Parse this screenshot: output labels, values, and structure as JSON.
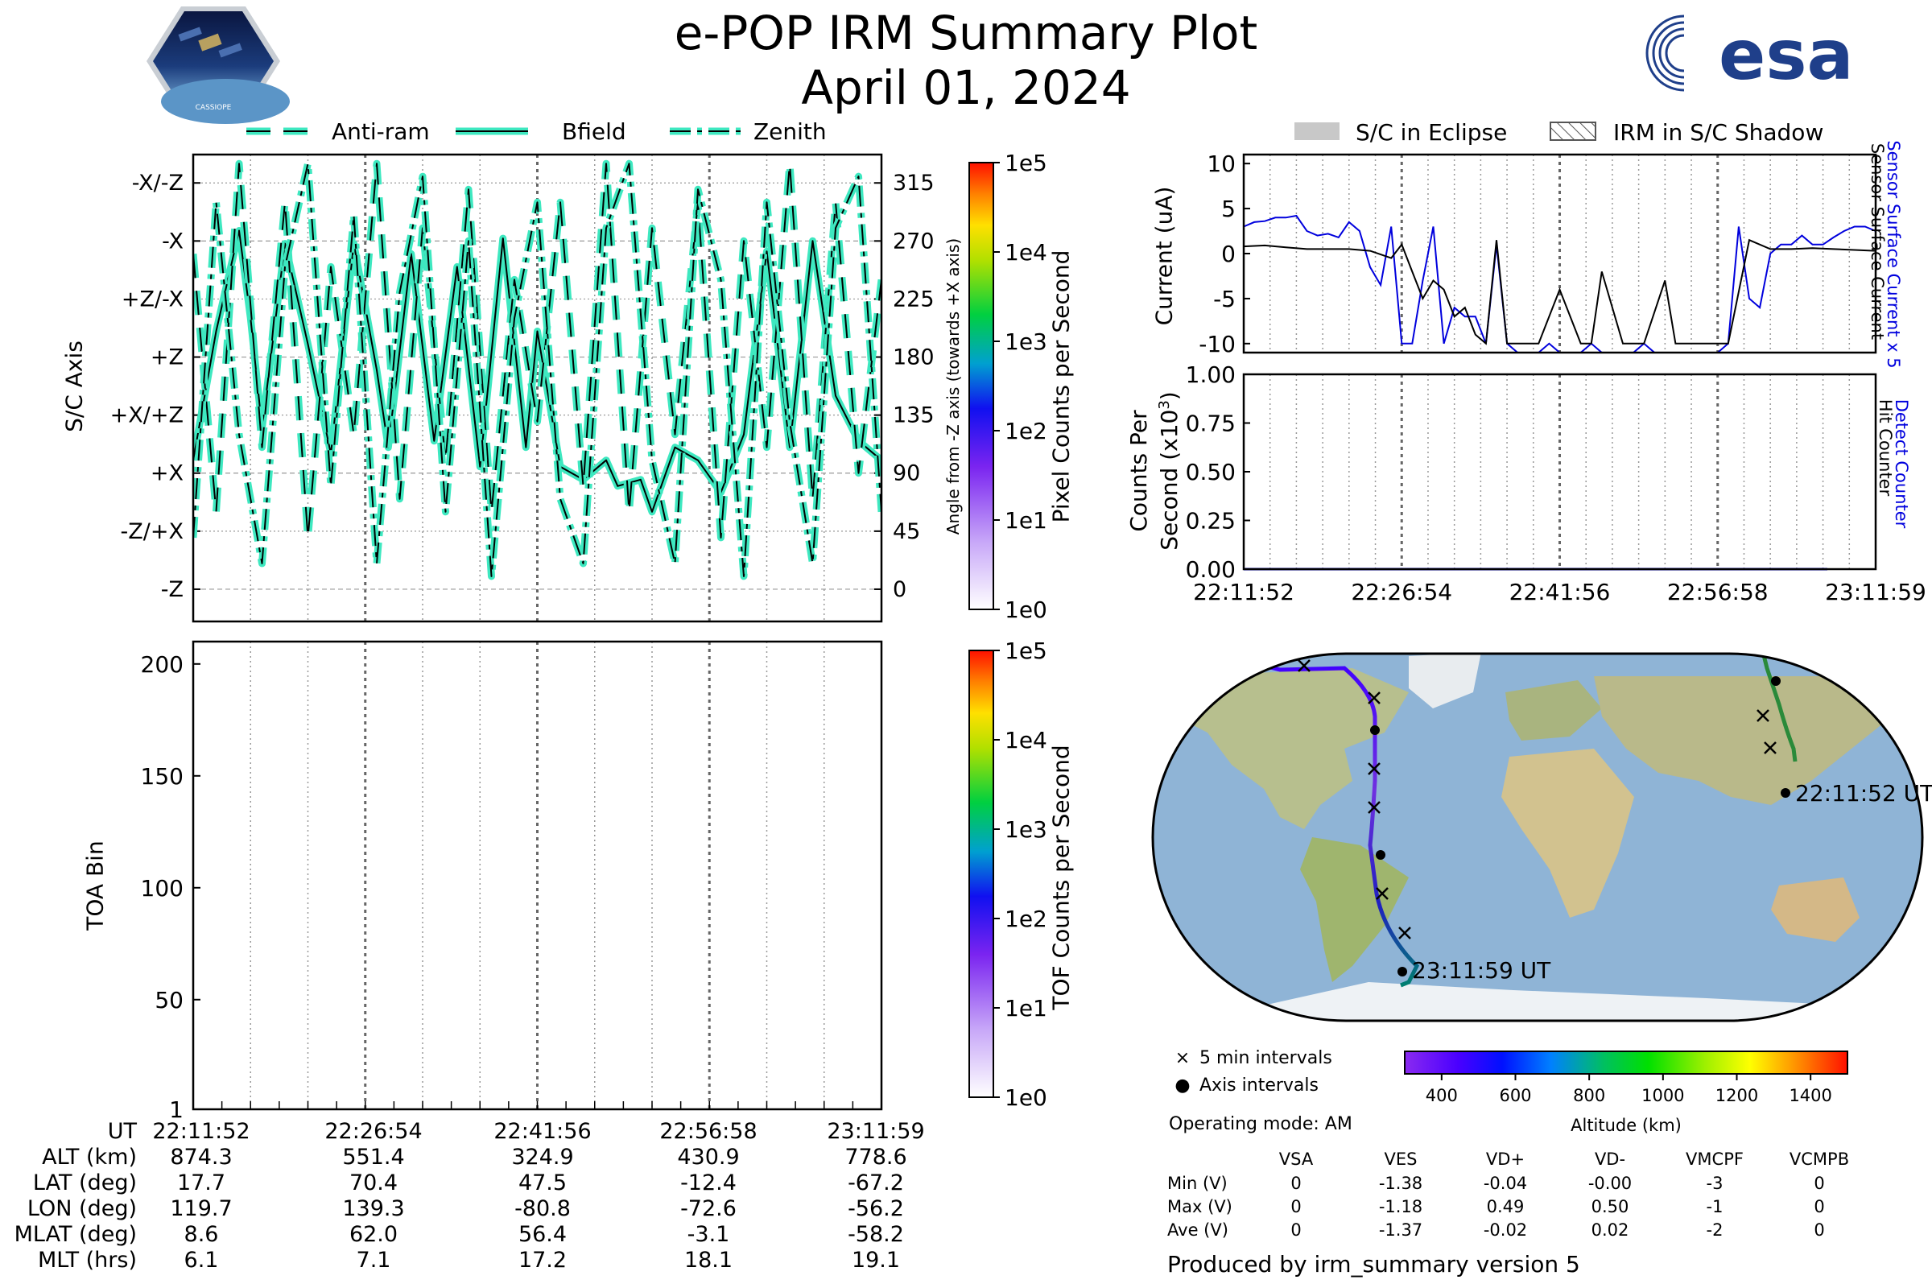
{
  "title": "e-POP IRM Summary Plot",
  "date": "April 01, 2024",
  "esa_logo_text": "esa",
  "cassiope_logo_text": "CASSIOPE",
  "axis_legend": [
    "Anti-ram",
    "Bfield",
    "Zenith"
  ],
  "eclipse_legend": [
    "S/C in Eclipse",
    "IRM in S/C Shadow"
  ],
  "colors": {
    "trace_fill": "#3ee8c0",
    "trace_edge": "#000000",
    "sensor_current": "#0000dd",
    "surface_current": "#000000",
    "grid": "#888888"
  },
  "chart_data": [
    {
      "id": "sc_axis",
      "type": "line",
      "ylabel": "S/C Axis",
      "y2label": "Angle from -Z axis (towards +X axis)",
      "ytick_labels": [
        "-X/-Z",
        "-X",
        "+Z/-X",
        "+Z",
        "+X/+Z",
        "+X",
        "-Z/+X",
        "-Z"
      ],
      "y2ticks": [
        315,
        270,
        225,
        180,
        135,
        90,
        45,
        0
      ],
      "ylim": [
        -25,
        337
      ],
      "x_range": [
        "22:11:52",
        "23:11:59"
      ],
      "series": [
        {
          "name": "Bfield",
          "style": "solid",
          "x_min": [
            0,
            2,
            4,
            5,
            6,
            8,
            10,
            12,
            14,
            16,
            17,
            19,
            21,
            23,
            25,
            27,
            29,
            30,
            32,
            34,
            36,
            37,
            39,
            40,
            42,
            44,
            46,
            48,
            50,
            52,
            54,
            56,
            58,
            60
          ],
          "angle_deg": [
            100,
            200,
            278,
            210,
            125,
            268,
            190,
            105,
            268,
            170,
            110,
            260,
            115,
            250,
            95,
            272,
            110,
            200,
            95,
            85,
            100,
            80,
            85,
            60,
            110,
            100,
            75,
            120,
            262,
            110,
            270,
            150,
            115,
            100
          ]
        },
        {
          "name": "Anti-ram",
          "style": "dashed",
          "x_min": [
            0,
            2,
            4,
            6,
            8,
            10,
            12,
            14,
            16,
            18,
            20,
            22,
            24,
            26,
            28,
            30,
            32,
            34,
            36,
            38,
            40,
            42,
            44,
            46,
            48,
            50,
            52,
            54,
            56,
            58,
            60
          ],
          "angle_deg": [
            260,
            60,
            330,
            110,
            300,
            40,
            250,
            120,
            330,
            70,
            280,
            100,
            310,
            60,
            240,
            130,
            300,
            80,
            330,
            60,
            280,
            120,
            300,
            40,
            270,
            110,
            330,
            70,
            300,
            90,
            240
          ]
        },
        {
          "name": "Zenith",
          "style": "dashdot",
          "x_min": [
            0,
            2,
            4,
            6,
            8,
            10,
            12,
            14,
            16,
            18,
            20,
            22,
            24,
            26,
            28,
            30,
            32,
            34,
            36,
            38,
            40,
            42,
            44,
            46,
            48,
            50,
            52,
            54,
            56,
            58,
            60
          ],
          "angle_deg": [
            40,
            300,
            120,
            20,
            250,
            330,
            80,
            290,
            20,
            230,
            320,
            60,
            270,
            10,
            210,
            300,
            70,
            20,
            280,
            330,
            100,
            20,
            310,
            240,
            10,
            300,
            130,
            20,
            280,
            320,
            60
          ]
        }
      ]
    },
    {
      "id": "pixel_colorbar",
      "type": "heatmap",
      "label": "Pixel Counts per Second",
      "scale": "log",
      "tick_labels": [
        "1e5",
        "1e4",
        "1e3",
        "1e2",
        "1e1",
        "1e0"
      ]
    },
    {
      "id": "toa",
      "type": "heatmap",
      "ylabel": "TOA Bin",
      "yticks": [
        200,
        150,
        100,
        50,
        1
      ],
      "ylim": [
        1,
        210
      ],
      "values": []
    },
    {
      "id": "tof_colorbar",
      "type": "heatmap",
      "label": "TOF Counts per Second",
      "scale": "log",
      "tick_labels": [
        "1e5",
        "1e4",
        "1e3",
        "1e2",
        "1e1",
        "1e0"
      ]
    },
    {
      "id": "current",
      "type": "line",
      "ylabel": "Current (uA)",
      "y2label_a": "Sensor Surface Current x 5",
      "y2label_b": "Sensor Surface Current",
      "yticks": [
        10,
        5,
        0,
        -5,
        -10
      ],
      "ylim": [
        -11,
        11
      ],
      "series": [
        {
          "name": "Sensor Surface Current x 5",
          "color": "#0000dd",
          "x_min": [
            0,
            1,
            2,
            3,
            4,
            5,
            6,
            7,
            8,
            9,
            10,
            11,
            12,
            13,
            14,
            15,
            16,
            17,
            18,
            19,
            20,
            21,
            22,
            23,
            24,
            25,
            26,
            27,
            28,
            29,
            30,
            31,
            32,
            33,
            34,
            35,
            36,
            37,
            38,
            39,
            40,
            41,
            42,
            43,
            44,
            45,
            46,
            47,
            48,
            49,
            50,
            51,
            52,
            53,
            54,
            55,
            56,
            57,
            58,
            59,
            60
          ],
          "values": [
            3,
            3.5,
            3.6,
            4,
            4,
            4.2,
            2.5,
            2,
            2.2,
            1.8,
            3.5,
            2.5,
            -1.5,
            -3.5,
            3,
            -10,
            -10,
            -3,
            3,
            -10,
            -6,
            -7,
            -7,
            -10,
            1,
            -10,
            -11,
            -11,
            -11,
            -10,
            -11,
            -11,
            -11,
            -10,
            -11,
            -11,
            -11,
            -11,
            -10,
            -11,
            -11,
            -11,
            -11,
            -11,
            -11,
            -11,
            -10,
            3,
            -5,
            -6,
            0,
            1,
            1,
            2,
            1,
            1,
            1.8,
            2.5,
            3,
            3,
            2.5
          ]
        },
        {
          "name": "Sensor Surface Current",
          "color": "#000000",
          "x_min": [
            0,
            2,
            4,
            6,
            8,
            10,
            12,
            14,
            15,
            16,
            17,
            18,
            19,
            20,
            21,
            22,
            23,
            24,
            25,
            26,
            27,
            28,
            30,
            32,
            33,
            34,
            36,
            38,
            40,
            41,
            42,
            44,
            46,
            48,
            50,
            52,
            54,
            56,
            58,
            60
          ],
          "values": [
            0.8,
            0.9,
            0.7,
            0.5,
            0.5,
            0.5,
            0.3,
            -0.5,
            1,
            -2,
            -5,
            -3,
            -4,
            -7,
            -6,
            -9,
            -10,
            1.5,
            -10,
            -10,
            -10,
            -10,
            -4,
            -10,
            -10,
            -2,
            -10,
            -10,
            -3,
            -10,
            -10,
            -10,
            -10,
            1.5,
            0.5,
            0.5,
            0.6,
            0.5,
            0.4,
            0.3
          ]
        }
      ]
    },
    {
      "id": "counts",
      "type": "line",
      "ylabel": "Counts Per Second (x10³)",
      "ylabel_line1": "Counts Per",
      "ylabel_line2": "Second (x10",
      "ylabel_sup": "3",
      "ylabel_line2_end": ")",
      "y2label_a": "Detect Counter",
      "y2label_b": "Hit Counter",
      "yticks": [
        "1.00",
        "0.75",
        "0.50",
        "0.25",
        "0.00"
      ],
      "ylim": [
        0,
        1
      ],
      "series": [
        {
          "name": "Detect Counter",
          "color": "#0000dd",
          "x_min": [
            0,
            60
          ],
          "values": [
            0,
            0
          ]
        }
      ]
    },
    {
      "id": "altitude_colorbar",
      "type": "heatmap",
      "label": "Altitude (km)",
      "ticks": [
        400,
        600,
        800,
        1000,
        1200,
        1400
      ],
      "range": [
        300,
        1500
      ]
    }
  ],
  "time_ticks": [
    "22:11:52",
    "22:26:54",
    "22:41:56",
    "22:56:58",
    "23:11:59"
  ],
  "footer_table": {
    "row_labels": [
      "UT",
      "ALT (km)",
      "LAT (deg)",
      "LON (deg)",
      "MLAT (deg)",
      "MLT (hrs)"
    ],
    "columns": [
      [
        "22:11:52",
        "874.3",
        "17.7",
        "119.7",
        "8.6",
        "6.1"
      ],
      [
        "22:26:54",
        "551.4",
        "70.4",
        "139.3",
        "62.0",
        "7.1"
      ],
      [
        "22:41:56",
        "324.9",
        "47.5",
        "-80.8",
        "56.4",
        "17.2"
      ],
      [
        "22:56:58",
        "430.9",
        "-12.4",
        "-72.6",
        "-3.1",
        "18.1"
      ],
      [
        "23:11:59",
        "778.6",
        "-67.2",
        "-56.2",
        "-58.2",
        "19.1"
      ]
    ]
  },
  "map": {
    "start_label": "22:11:52 UT",
    "end_label": "23:11:59 UT",
    "legend": [
      "5 min intervals",
      "Axis intervals"
    ]
  },
  "operating_mode": "Operating mode: AM",
  "voltage_table": {
    "headers": [
      "VSA",
      "VES",
      "VD+",
      "VD-",
      "VMCPF",
      "VCMPB"
    ],
    "rows": [
      {
        "label": "Min (V)",
        "values": [
          "0",
          "-1.38",
          "-0.04",
          "-0.00",
          "-3",
          "0"
        ]
      },
      {
        "label": "Max (V)",
        "values": [
          "0",
          "-1.18",
          "0.49",
          "0.50",
          "-1",
          "0"
        ]
      },
      {
        "label": "Ave (V)",
        "values": [
          "0",
          "-1.37",
          "-0.02",
          "0.02",
          "-2",
          "0"
        ]
      }
    ]
  },
  "footer_note": "Produced by irm_summary version 5"
}
